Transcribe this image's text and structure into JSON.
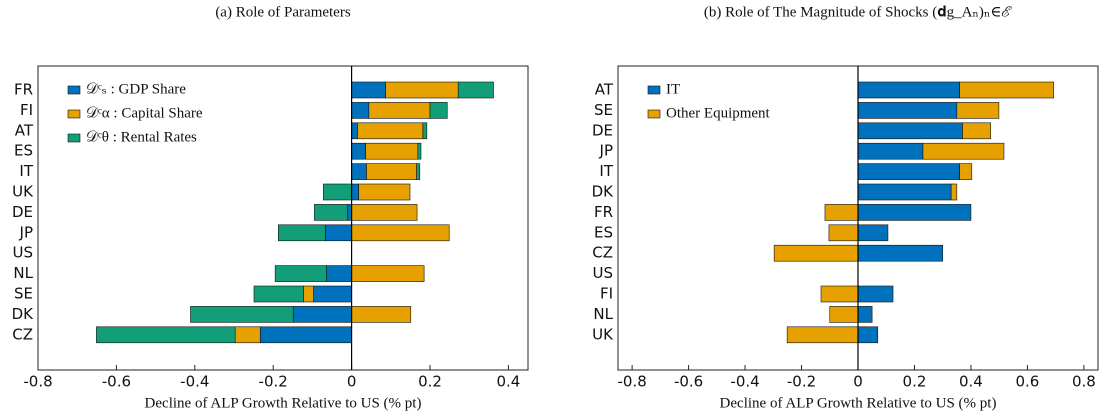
{
  "chart_data": [
    {
      "type": "bar",
      "orientation": "horizontal",
      "stacked": true,
      "title": "(a) Role of Parameters",
      "x_label": "Decline of ALP Growth Relative to US (% pt)",
      "categories": [
        "FR",
        "FI",
        "AT",
        "ES",
        "IT",
        "UK",
        "DE",
        "JP",
        "US",
        "NL",
        "SE",
        "DK",
        "CZ"
      ],
      "series": [
        {
          "name": "𝒟ᶜₛ : GDP Share",
          "color": "#0072BD",
          "values": [
            0.087,
            0.044,
            0.015,
            0.036,
            0.038,
            0.018,
            -0.01,
            -0.067,
            0,
            -0.064,
            -0.097,
            -0.149,
            -0.233
          ]
        },
        {
          "name": "𝒟ᶜα : Capital Share",
          "color": "#E6A000",
          "values": [
            0.185,
            0.156,
            0.167,
            0.133,
            0.128,
            0.131,
            0.167,
            0.249,
            0,
            0.185,
            -0.026,
            0.151,
            -0.064
          ]
        },
        {
          "name": "𝒟ᶜθ : Rental Rates",
          "color": "#129E78",
          "values": [
            0.09,
            0.044,
            0.01,
            0.008,
            0.008,
            -0.072,
            -0.085,
            -0.12,
            0,
            -0.131,
            -0.126,
            -0.262,
            -0.354
          ]
        }
      ],
      "xlim": [
        -0.8,
        0.45
      ],
      "xticks": [
        -0.8,
        -0.6,
        -0.4,
        -0.2,
        0,
        0.2,
        0.4
      ],
      "legend": "upper left"
    },
    {
      "type": "bar",
      "orientation": "horizontal",
      "stacked": true,
      "title": "(b) Role of The Magnitude of Shocks (𝐝g_Aₙ)ₙ∈ℰ",
      "x_label": "Decline of ALP Growth Relative to US (% pt)",
      "categories": [
        "AT",
        "SE",
        "DE",
        "JP",
        "IT",
        "DK",
        "FR",
        "ES",
        "CZ",
        "US",
        "FI",
        "NL",
        "UK"
      ],
      "series": [
        {
          "name": "IT",
          "color": "#0072BD",
          "values": [
            0.36,
            0.35,
            0.37,
            0.23,
            0.36,
            0.33,
            0.4,
            0.106,
            0.3,
            0,
            0.124,
            0.05,
            0.07
          ]
        },
        {
          "name": "Other Equipment",
          "color": "#E6A000",
          "values": [
            0.333,
            0.149,
            0.1,
            0.287,
            0.043,
            0.02,
            -0.117,
            -0.103,
            -0.297,
            0,
            -0.131,
            -0.1,
            -0.251
          ]
        }
      ],
      "xlim": [
        -0.85,
        0.85
      ],
      "xticks": [
        -0.8,
        -0.6,
        -0.4,
        -0.2,
        0,
        0.2,
        0.4,
        0.6,
        0.8
      ],
      "legend": "upper left"
    }
  ]
}
